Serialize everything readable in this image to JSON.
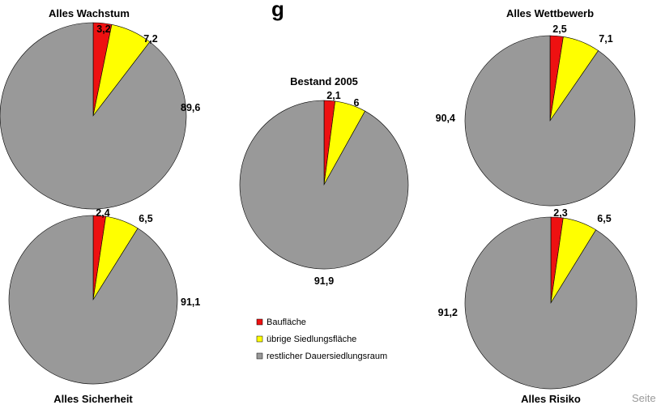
{
  "page": {
    "title_fragment": "g",
    "page_label_fragment": "Seite"
  },
  "legend": {
    "items": [
      {
        "label": "Baufläche",
        "color": "#ee1111"
      },
      {
        "label": "übrige Siedlungsfläche",
        "color": "#ffff00"
      },
      {
        "label": "restlicher Dauersiedlungsraum",
        "color": "#999999"
      }
    ]
  },
  "chart_data": [
    {
      "type": "pie",
      "title": "Alles Wachstum",
      "categories": [
        "Baufläche",
        "übrige Siedlungsfläche",
        "restlicher Dauersiedlungsraum"
      ],
      "values": [
        3.2,
        7.2,
        89.6
      ],
      "value_labels": [
        "3,2",
        "7,2",
        "89,6"
      ]
    },
    {
      "type": "pie",
      "title": "Bestand 2005",
      "categories": [
        "Baufläche",
        "übrige Siedlungsfläche",
        "restlicher Dauersiedlungsraum"
      ],
      "values": [
        2.1,
        6,
        91.9
      ],
      "value_labels": [
        "2,1",
        "6",
        "91,9"
      ]
    },
    {
      "type": "pie",
      "title": "Alles Wettbewerb",
      "categories": [
        "Baufläche",
        "übrige Siedlungsfläche",
        "restlicher Dauersiedlungsraum"
      ],
      "values": [
        2.5,
        7.1,
        90.4
      ],
      "value_labels": [
        "2,5",
        "7,1",
        "90,4"
      ]
    },
    {
      "type": "pie",
      "title": "Alles Sicherheit",
      "categories": [
        "Baufläche",
        "übrige Siedlungsfläche",
        "restlicher Dauersiedlungsraum"
      ],
      "values": [
        2.4,
        6.5,
        91.1
      ],
      "value_labels": [
        "2,4",
        "6,5",
        "91,1"
      ]
    },
    {
      "type": "pie",
      "title": "Alles Risiko",
      "categories": [
        "Baufläche",
        "übrige Siedlungsfläche",
        "restlicher Dauersiedlungsraum"
      ],
      "values": [
        2.3,
        6.5,
        91.2
      ],
      "value_labels": [
        "2,3",
        "6,5",
        "91,2"
      ]
    }
  ]
}
